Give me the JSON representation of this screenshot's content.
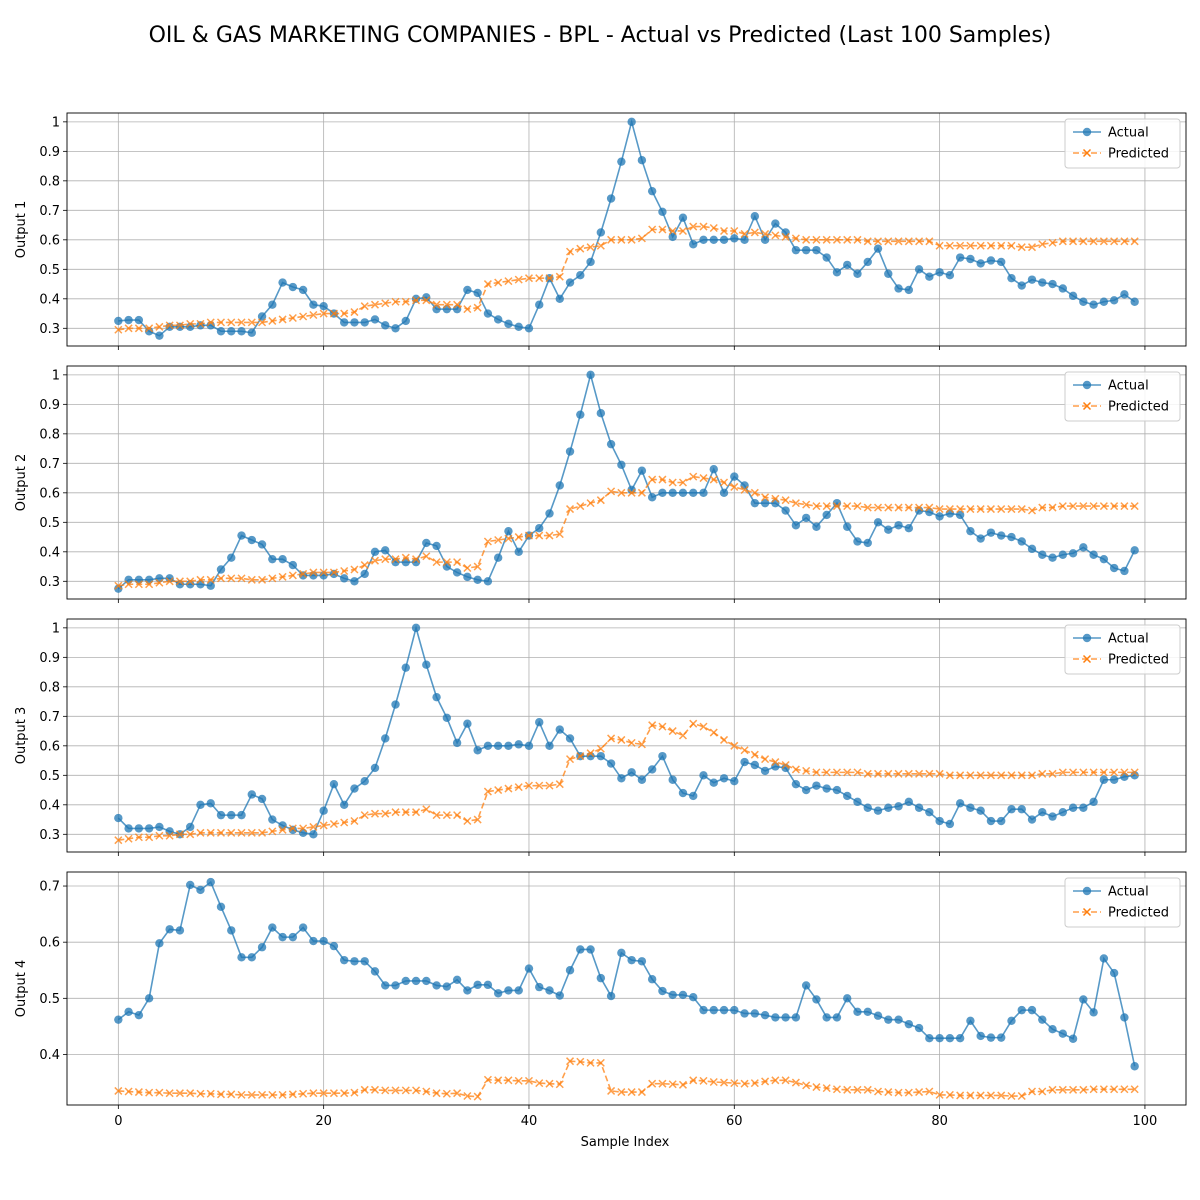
{
  "figure": {
    "title": "OIL & GAS MARKETING COMPANIES - BPL - Actual vs Predicted (Last 100 Samples)",
    "xlabel": "Sample Index"
  },
  "colors": {
    "actual": "#1f77b4",
    "predicted": "#ff7f0e",
    "grid": "#b0b0b0"
  },
  "chart_data": [
    {
      "type": "line",
      "ylabel": "Output 1",
      "xlim": [
        -5,
        104
      ],
      "ylim": [
        0.24,
        1.03
      ],
      "xticks": [
        0,
        20,
        40,
        60,
        80,
        100
      ],
      "yticks": [
        0.3,
        0.4,
        0.5,
        0.6,
        0.7,
        0.8,
        0.9,
        1.0
      ],
      "grid": true,
      "legend": "upper right",
      "series": [
        {
          "name": "Actual",
          "marker": "o",
          "linestyle": "solid",
          "values": [
            0.325,
            0.328,
            0.328,
            0.29,
            0.275,
            0.305,
            0.305,
            0.305,
            0.31,
            0.31,
            0.29,
            0.29,
            0.29,
            0.285,
            0.34,
            0.38,
            0.455,
            0.44,
            0.43,
            0.38,
            0.375,
            0.35,
            0.32,
            0.32,
            0.32,
            0.33,
            0.31,
            0.3,
            0.325,
            0.4,
            0.405,
            0.365,
            0.365,
            0.365,
            0.43,
            0.42,
            0.35,
            0.33,
            0.315,
            0.305,
            0.3,
            0.38,
            0.47,
            0.4,
            0.455,
            0.48,
            0.525,
            0.625,
            0.74,
            0.865,
            1.0,
            0.87,
            0.765,
            0.695,
            0.61,
            0.675,
            0.585,
            0.6,
            0.6,
            0.6,
            0.605,
            0.6,
            0.68,
            0.6,
            0.655,
            0.625,
            0.565,
            0.565,
            0.565,
            0.54,
            0.49,
            0.515,
            0.485,
            0.525,
            0.57,
            0.485,
            0.435,
            0.43,
            0.5,
            0.475,
            0.49,
            0.48,
            0.54,
            0.535,
            0.52,
            0.53,
            0.525,
            0.47,
            0.445,
            0.465,
            0.455,
            0.45,
            0.435,
            0.41,
            0.39,
            0.38,
            0.39,
            0.395,
            0.415,
            0.39
          ]
        },
        {
          "name": "Predicted",
          "marker": "x",
          "linestyle": "dashed",
          "values": [
            0.295,
            0.3,
            0.3,
            0.3,
            0.305,
            0.31,
            0.31,
            0.315,
            0.315,
            0.32,
            0.32,
            0.32,
            0.32,
            0.32,
            0.32,
            0.325,
            0.33,
            0.335,
            0.34,
            0.345,
            0.35,
            0.35,
            0.35,
            0.355,
            0.375,
            0.38,
            0.385,
            0.39,
            0.39,
            0.395,
            0.395,
            0.38,
            0.38,
            0.38,
            0.365,
            0.37,
            0.45,
            0.455,
            0.46,
            0.465,
            0.47,
            0.47,
            0.47,
            0.475,
            0.56,
            0.57,
            0.575,
            0.58,
            0.6,
            0.6,
            0.6,
            0.605,
            0.635,
            0.635,
            0.63,
            0.63,
            0.645,
            0.645,
            0.64,
            0.63,
            0.63,
            0.62,
            0.625,
            0.62,
            0.615,
            0.61,
            0.605,
            0.6,
            0.6,
            0.6,
            0.6,
            0.6,
            0.6,
            0.595,
            0.595,
            0.595,
            0.595,
            0.595,
            0.595,
            0.595,
            0.58,
            0.58,
            0.58,
            0.58,
            0.58,
            0.58,
            0.58,
            0.58,
            0.575,
            0.575,
            0.585,
            0.59,
            0.595,
            0.595,
            0.595,
            0.595,
            0.595,
            0.595,
            0.595,
            0.595
          ]
        }
      ]
    },
    {
      "type": "line",
      "ylabel": "Output 2",
      "xlim": [
        -5,
        104
      ],
      "ylim": [
        0.24,
        1.03
      ],
      "xticks": [
        0,
        20,
        40,
        60,
        80,
        100
      ],
      "yticks": [
        0.3,
        0.4,
        0.5,
        0.6,
        0.7,
        0.8,
        0.9,
        1.0
      ],
      "grid": true,
      "legend": "upper right",
      "series": [
        {
          "name": "Actual",
          "marker": "o",
          "linestyle": "solid",
          "values": [
            0.275,
            0.305,
            0.305,
            0.305,
            0.31,
            0.31,
            0.29,
            0.29,
            0.29,
            0.285,
            0.34,
            0.38,
            0.455,
            0.44,
            0.425,
            0.375,
            0.375,
            0.355,
            0.32,
            0.32,
            0.32,
            0.325,
            0.31,
            0.3,
            0.325,
            0.4,
            0.405,
            0.365,
            0.365,
            0.365,
            0.43,
            0.42,
            0.35,
            0.33,
            0.315,
            0.305,
            0.3,
            0.38,
            0.47,
            0.4,
            0.455,
            0.48,
            0.53,
            0.625,
            0.74,
            0.865,
            1.0,
            0.87,
            0.765,
            0.695,
            0.61,
            0.675,
            0.585,
            0.6,
            0.6,
            0.6,
            0.6,
            0.6,
            0.68,
            0.6,
            0.655,
            0.625,
            0.565,
            0.565,
            0.565,
            0.54,
            0.49,
            0.515,
            0.485,
            0.525,
            0.565,
            0.485,
            0.435,
            0.43,
            0.5,
            0.475,
            0.49,
            0.48,
            0.54,
            0.535,
            0.52,
            0.53,
            0.525,
            0.47,
            0.445,
            0.465,
            0.455,
            0.45,
            0.435,
            0.41,
            0.39,
            0.38,
            0.39,
            0.395,
            0.415,
            0.39,
            0.375,
            0.345,
            0.335,
            0.405
          ]
        },
        {
          "name": "Predicted",
          "marker": "x",
          "linestyle": "dashed",
          "values": [
            0.285,
            0.29,
            0.29,
            0.29,
            0.295,
            0.3,
            0.3,
            0.3,
            0.305,
            0.305,
            0.31,
            0.31,
            0.31,
            0.305,
            0.305,
            0.31,
            0.315,
            0.32,
            0.325,
            0.33,
            0.33,
            0.33,
            0.335,
            0.34,
            0.355,
            0.37,
            0.375,
            0.375,
            0.38,
            0.375,
            0.385,
            0.365,
            0.365,
            0.365,
            0.345,
            0.35,
            0.435,
            0.44,
            0.445,
            0.45,
            0.455,
            0.455,
            0.455,
            0.46,
            0.545,
            0.555,
            0.565,
            0.575,
            0.605,
            0.6,
            0.6,
            0.6,
            0.645,
            0.645,
            0.635,
            0.635,
            0.655,
            0.65,
            0.645,
            0.635,
            0.62,
            0.61,
            0.6,
            0.585,
            0.58,
            0.575,
            0.565,
            0.56,
            0.555,
            0.555,
            0.555,
            0.555,
            0.555,
            0.55,
            0.55,
            0.55,
            0.55,
            0.55,
            0.55,
            0.55,
            0.545,
            0.545,
            0.545,
            0.545,
            0.545,
            0.545,
            0.545,
            0.545,
            0.545,
            0.54,
            0.55,
            0.55,
            0.555,
            0.555,
            0.555,
            0.555,
            0.555,
            0.555,
            0.555,
            0.555
          ]
        }
      ]
    },
    {
      "type": "line",
      "ylabel": "Output 3",
      "xlim": [
        -5,
        104
      ],
      "ylim": [
        0.24,
        1.03
      ],
      "xticks": [
        0,
        20,
        40,
        60,
        80,
        100
      ],
      "yticks": [
        0.3,
        0.4,
        0.5,
        0.6,
        0.7,
        0.8,
        0.9,
        1.0
      ],
      "grid": true,
      "legend": "upper right",
      "series": [
        {
          "name": "Actual",
          "marker": "o",
          "linestyle": "solid",
          "values": [
            0.355,
            0.32,
            0.32,
            0.32,
            0.325,
            0.31,
            0.3,
            0.325,
            0.4,
            0.405,
            0.365,
            0.365,
            0.365,
            0.435,
            0.42,
            0.35,
            0.33,
            0.315,
            0.305,
            0.3,
            0.38,
            0.47,
            0.4,
            0.455,
            0.48,
            0.525,
            0.625,
            0.74,
            0.865,
            1.0,
            0.875,
            0.765,
            0.695,
            0.61,
            0.675,
            0.585,
            0.6,
            0.6,
            0.6,
            0.605,
            0.6,
            0.68,
            0.6,
            0.655,
            0.625,
            0.565,
            0.565,
            0.565,
            0.54,
            0.49,
            0.51,
            0.485,
            0.52,
            0.565,
            0.485,
            0.44,
            0.43,
            0.5,
            0.475,
            0.49,
            0.48,
            0.545,
            0.535,
            0.515,
            0.53,
            0.525,
            0.47,
            0.45,
            0.465,
            0.455,
            0.45,
            0.43,
            0.41,
            0.39,
            0.38,
            0.39,
            0.395,
            0.41,
            0.39,
            0.375,
            0.345,
            0.335,
            0.405,
            0.39,
            0.38,
            0.345,
            0.345,
            0.385,
            0.385,
            0.35,
            0.375,
            0.36,
            0.375,
            0.39,
            0.39,
            0.41,
            0.485,
            0.485,
            0.495,
            0.5
          ]
        },
        {
          "name": "Predicted",
          "marker": "x",
          "linestyle": "dashed",
          "values": [
            0.28,
            0.285,
            0.29,
            0.29,
            0.295,
            0.295,
            0.3,
            0.3,
            0.305,
            0.305,
            0.305,
            0.305,
            0.305,
            0.305,
            0.305,
            0.31,
            0.315,
            0.32,
            0.32,
            0.325,
            0.33,
            0.335,
            0.34,
            0.345,
            0.365,
            0.37,
            0.37,
            0.375,
            0.375,
            0.375,
            0.385,
            0.365,
            0.365,
            0.365,
            0.345,
            0.35,
            0.445,
            0.45,
            0.455,
            0.46,
            0.465,
            0.465,
            0.465,
            0.47,
            0.555,
            0.565,
            0.575,
            0.59,
            0.625,
            0.62,
            0.61,
            0.605,
            0.67,
            0.665,
            0.65,
            0.635,
            0.675,
            0.665,
            0.645,
            0.62,
            0.6,
            0.585,
            0.57,
            0.555,
            0.545,
            0.535,
            0.52,
            0.515,
            0.51,
            0.51,
            0.51,
            0.51,
            0.51,
            0.505,
            0.505,
            0.505,
            0.505,
            0.505,
            0.505,
            0.505,
            0.505,
            0.5,
            0.5,
            0.5,
            0.5,
            0.5,
            0.5,
            0.5,
            0.5,
            0.5,
            0.505,
            0.505,
            0.51,
            0.51,
            0.51,
            0.51,
            0.51,
            0.51,
            0.51,
            0.51
          ]
        }
      ]
    },
    {
      "type": "line",
      "ylabel": "Output 4",
      "xlim": [
        -5,
        104
      ],
      "ylim": [
        0.31,
        0.725
      ],
      "xticks": [
        0,
        20,
        40,
        60,
        80,
        100
      ],
      "yticks": [
        0.4,
        0.5,
        0.6,
        0.7
      ],
      "grid": true,
      "legend": "upper right",
      "series": [
        {
          "name": "Actual",
          "marker": "o",
          "linestyle": "solid",
          "values": [
            0.462,
            0.476,
            0.47,
            0.5,
            0.598,
            0.623,
            0.621,
            0.702,
            0.693,
            0.707,
            0.663,
            0.621,
            0.573,
            0.573,
            0.591,
            0.626,
            0.609,
            0.609,
            0.626,
            0.602,
            0.602,
            0.593,
            0.568,
            0.566,
            0.566,
            0.548,
            0.523,
            0.523,
            0.531,
            0.531,
            0.531,
            0.523,
            0.521,
            0.533,
            0.514,
            0.524,
            0.524,
            0.509,
            0.514,
            0.514,
            0.553,
            0.52,
            0.514,
            0.505,
            0.55,
            0.587,
            0.587,
            0.536,
            0.504,
            0.581,
            0.568,
            0.566,
            0.534,
            0.513,
            0.506,
            0.506,
            0.502,
            0.479,
            0.479,
            0.479,
            0.479,
            0.473,
            0.473,
            0.47,
            0.466,
            0.466,
            0.466,
            0.523,
            0.498,
            0.466,
            0.466,
            0.5,
            0.476,
            0.476,
            0.469,
            0.462,
            0.462,
            0.454,
            0.447,
            0.429,
            0.429,
            0.429,
            0.429,
            0.46,
            0.433,
            0.43,
            0.43,
            0.46,
            0.479,
            0.479,
            0.462,
            0.445,
            0.437,
            0.428,
            0.498,
            0.475,
            0.571,
            0.545,
            0.466,
            0.379
          ]
        },
        {
          "name": "Predicted",
          "marker": "x",
          "linestyle": "dashed",
          "values": [
            0.335,
            0.334,
            0.333,
            0.332,
            0.332,
            0.331,
            0.331,
            0.331,
            0.33,
            0.33,
            0.329,
            0.329,
            0.328,
            0.328,
            0.328,
            0.328,
            0.328,
            0.329,
            0.33,
            0.331,
            0.331,
            0.331,
            0.331,
            0.332,
            0.337,
            0.337,
            0.336,
            0.336,
            0.336,
            0.336,
            0.334,
            0.331,
            0.33,
            0.331,
            0.326,
            0.325,
            0.355,
            0.354,
            0.354,
            0.353,
            0.353,
            0.349,
            0.348,
            0.347,
            0.388,
            0.387,
            0.385,
            0.385,
            0.335,
            0.333,
            0.333,
            0.333,
            0.348,
            0.348,
            0.347,
            0.346,
            0.354,
            0.353,
            0.351,
            0.35,
            0.349,
            0.348,
            0.349,
            0.352,
            0.354,
            0.354,
            0.35,
            0.345,
            0.342,
            0.34,
            0.338,
            0.337,
            0.337,
            0.337,
            0.334,
            0.333,
            0.332,
            0.332,
            0.333,
            0.334,
            0.328,
            0.328,
            0.327,
            0.327,
            0.327,
            0.327,
            0.327,
            0.326,
            0.326,
            0.334,
            0.334,
            0.337,
            0.337,
            0.337,
            0.337,
            0.338,
            0.338,
            0.338,
            0.338,
            0.338
          ]
        }
      ]
    }
  ]
}
